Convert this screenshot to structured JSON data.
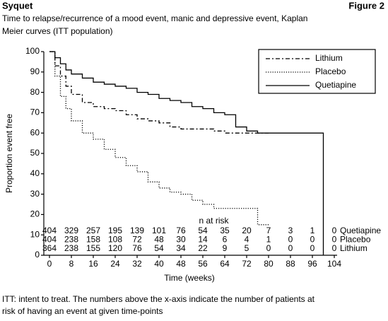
{
  "chart_data": {
    "type": "line",
    "header": "Syquet",
    "figure_label": "Figure 2",
    "title": [
      "Time to relapse/recurrence of a mood event, manic and depressive event, Kaplan",
      "Meier curves (ITT population)"
    ],
    "y_label": "Proportion event free",
    "x_label": "Time (weeks)",
    "footnote": [
      "ITT: intent to treat. The numbers above the x-axis indicate the number of patients at",
      "risk of having an event at given time-points"
    ],
    "xlim": [
      0,
      104
    ],
    "xticks": [
      0,
      8,
      16,
      24,
      32,
      40,
      48,
      56,
      64,
      72,
      80,
      88,
      96,
      104
    ],
    "ylim": [
      0,
      100
    ],
    "yticks": [
      0,
      10,
      20,
      30,
      40,
      50,
      60,
      70,
      80,
      90,
      100
    ],
    "legend": "upper right",
    "series": [
      {
        "name": "Lithium",
        "color": "#000000",
        "line_style": "dashdot",
        "x": [
          0,
          2,
          4,
          6,
          8,
          12,
          16,
          20,
          24,
          28,
          32,
          36,
          40,
          44,
          48,
          60,
          64,
          80
        ],
        "values": [
          100,
          93,
          88,
          83,
          79,
          75,
          73,
          72,
          71,
          69,
          67,
          66,
          65,
          63,
          62,
          61,
          60,
          60
        ]
      },
      {
        "name": "Placebo",
        "color": "#000000",
        "line_style": "dotted",
        "x": [
          0,
          2,
          4,
          6,
          8,
          12,
          16,
          20,
          24,
          28,
          32,
          36,
          40,
          44,
          48,
          52,
          56,
          60,
          76,
          80
        ],
        "values": [
          100,
          88,
          78,
          72,
          66,
          60,
          57,
          52,
          48,
          44,
          41,
          36,
          33,
          31,
          30,
          27,
          25,
          23,
          15,
          15
        ]
      },
      {
        "name": "Quetiapine",
        "color": "#000000",
        "line_style": "solid",
        "x": [
          0,
          2,
          4,
          6,
          8,
          12,
          16,
          20,
          24,
          28,
          32,
          36,
          40,
          44,
          48,
          52,
          56,
          60,
          64,
          68,
          72,
          76,
          100,
          100
        ],
        "values": [
          100,
          97,
          94,
          91,
          89,
          87,
          85,
          84,
          83,
          82,
          80,
          79,
          77,
          76,
          75,
          73,
          72,
          70,
          69,
          63,
          61,
          60,
          60,
          0
        ]
      }
    ],
    "risk_table": {
      "title": "n at risk",
      "rows": [
        {
          "name": "Quetiapine",
          "values": [
            404,
            329,
            257,
            195,
            139,
            101,
            76,
            54,
            35,
            20,
            7,
            3,
            1,
            0
          ]
        },
        {
          "name": "Placebo",
          "values": [
            404,
            238,
            158,
            108,
            72,
            48,
            30,
            14,
            6,
            4,
            1,
            0,
            0,
            0
          ]
        },
        {
          "name": "Lithium",
          "values": [
            364,
            238,
            155,
            120,
            76,
            54,
            34,
            22,
            9,
            5,
            0,
            0,
            0,
            0
          ]
        }
      ]
    }
  }
}
